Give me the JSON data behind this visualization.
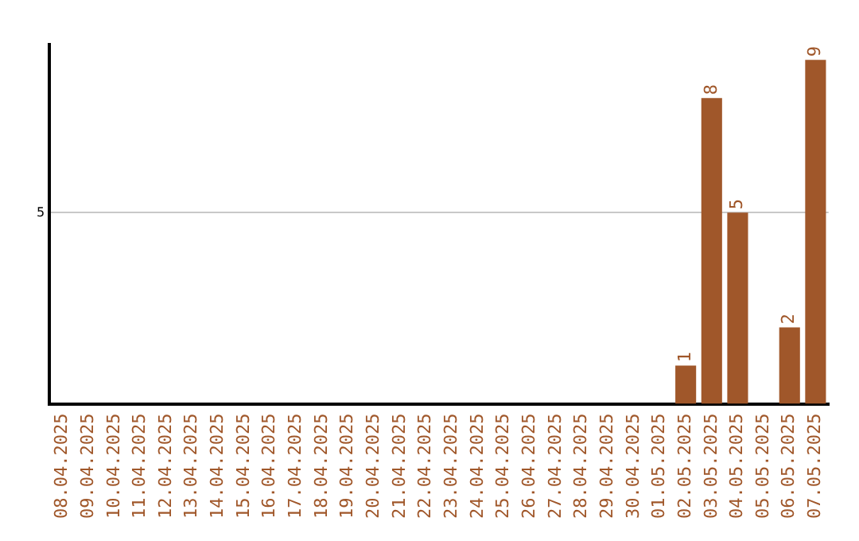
{
  "chart_data": {
    "type": "bar",
    "categories": [
      "08.04.2025",
      "09.04.2025",
      "10.04.2025",
      "11.04.2025",
      "12.04.2025",
      "13.04.2025",
      "14.04.2025",
      "15.04.2025",
      "16.04.2025",
      "17.04.2025",
      "18.04.2025",
      "19.04.2025",
      "20.04.2025",
      "21.04.2025",
      "22.04.2025",
      "23.04.2025",
      "24.04.2025",
      "25.04.2025",
      "26.04.2025",
      "27.04.2025",
      "28.04.2025",
      "29.04.2025",
      "30.04.2025",
      "01.05.2025",
      "02.05.2025",
      "03.05.2025",
      "04.05.2025",
      "05.05.2025",
      "06.05.2025",
      "07.05.2025"
    ],
    "values": [
      null,
      null,
      null,
      null,
      null,
      null,
      null,
      null,
      null,
      null,
      null,
      null,
      null,
      null,
      null,
      null,
      null,
      null,
      null,
      null,
      null,
      null,
      null,
      null,
      1,
      8,
      5,
      null,
      2,
      9
    ],
    "data_labels": true,
    "color": "#a0572a",
    "ylim": [
      0,
      9.4
    ],
    "yticks": [
      5
    ],
    "grid": "y",
    "legend": false
  }
}
